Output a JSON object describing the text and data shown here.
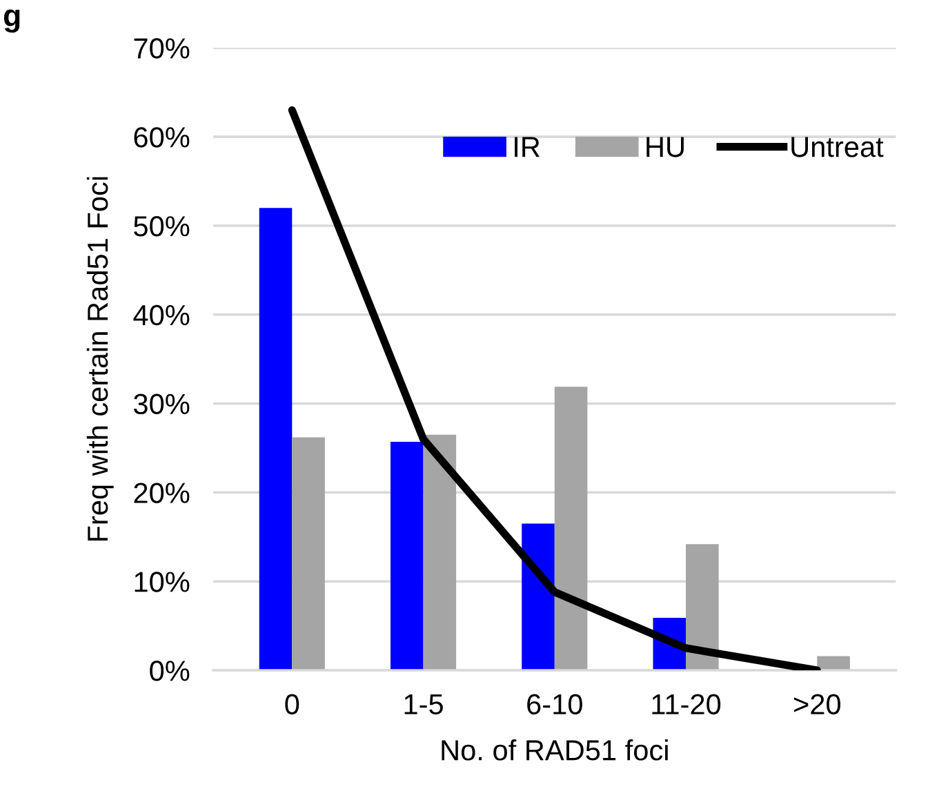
{
  "chart_data": {
    "type": "bar",
    "xlabel": "No. of RAD51 foci",
    "ylabel": "Freq with certain Rad51 Foci",
    "annotations": [
      "g"
    ],
    "categories": [
      "0",
      "1-5",
      "6-10",
      "11-20",
      ">20"
    ],
    "series": [
      {
        "name": "IR",
        "color": "#0000ff",
        "values": [
          52,
          25.7,
          16.5,
          5.9,
          0
        ]
      },
      {
        "name": "HU",
        "color": "#a5a5a5",
        "values": [
          26.2,
          26.5,
          31.9,
          14.2,
          1.6
        ]
      },
      {
        "name": "Untreat",
        "color": "#000000",
        "type": "line",
        "values": [
          63,
          26,
          8.8,
          2.5,
          0
        ]
      }
    ],
    "ylim": [
      0,
      70
    ],
    "yticks": [
      {
        "value": 0,
        "label": "0%"
      },
      {
        "value": 10,
        "label": "10%"
      },
      {
        "value": 20,
        "label": "20%"
      },
      {
        "value": 30,
        "label": "30%"
      },
      {
        "value": 40,
        "label": "40%"
      },
      {
        "value": 50,
        "label": "50%"
      },
      {
        "value": 60,
        "label": "60%"
      },
      {
        "value": 70,
        "label": "70%"
      }
    ],
    "grid": "y",
    "legend": "top right"
  }
}
